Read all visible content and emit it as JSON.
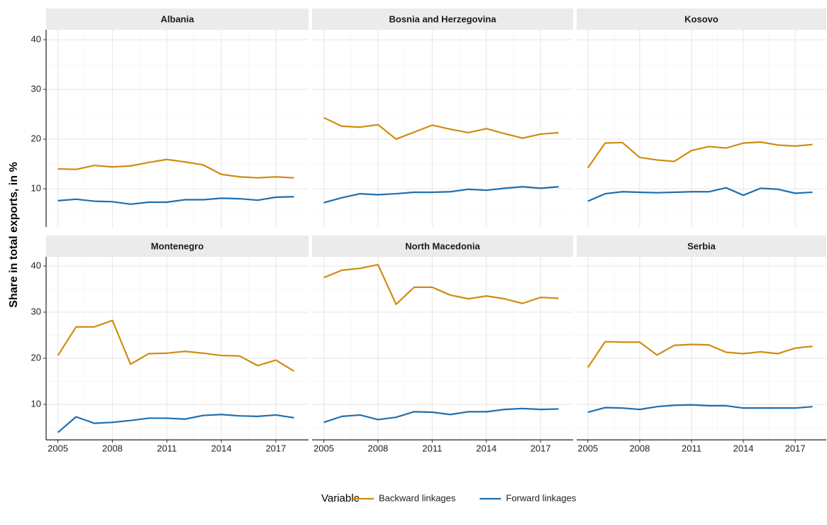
{
  "ylabel": "Share in total exports, in %",
  "legend_title": "Variable",
  "chart_data": [
    {
      "type": "line",
      "title": "Albania",
      "x": [
        2005,
        2006,
        2007,
        2008,
        2009,
        2010,
        2011,
        2012,
        2013,
        2014,
        2015,
        2016,
        2017,
        2018
      ],
      "series": [
        {
          "name": "Backward linkages",
          "color": "#d08c10",
          "values": [
            14.0,
            13.9,
            14.7,
            14.4,
            14.6,
            15.3,
            15.9,
            15.4,
            14.8,
            12.9,
            12.4,
            12.2,
            12.4,
            12.2
          ]
        },
        {
          "name": "Forward linkages",
          "color": "#1f6fb0",
          "values": [
            7.6,
            7.9,
            7.5,
            7.4,
            6.9,
            7.3,
            7.3,
            7.8,
            7.8,
            8.1,
            8.0,
            7.7,
            8.3,
            8.4
          ]
        }
      ],
      "xlim": [
        2004.35,
        2018.8
      ],
      "xticks": [
        2005,
        2008,
        2011,
        2014,
        2017
      ],
      "ylim": [
        2.3,
        42
      ],
      "yticks": [
        10,
        20,
        30,
        40
      ],
      "grid": true
    },
    {
      "type": "line",
      "title": "Bosnia and Herzegovina",
      "x": [
        2005,
        2006,
        2007,
        2008,
        2009,
        2010,
        2011,
        2012,
        2013,
        2014,
        2015,
        2016,
        2017,
        2018
      ],
      "series": [
        {
          "name": "Backward linkages",
          "color": "#d08c10",
          "values": [
            24.3,
            22.6,
            22.4,
            22.9,
            20.0,
            21.4,
            22.8,
            22.0,
            21.3,
            22.1,
            21.1,
            20.2,
            21.0,
            21.3
          ]
        },
        {
          "name": "Forward linkages",
          "color": "#1f6fb0",
          "values": [
            7.2,
            8.2,
            9.0,
            8.8,
            9.0,
            9.3,
            9.3,
            9.4,
            9.9,
            9.7,
            10.1,
            10.4,
            10.1,
            10.4
          ]
        }
      ],
      "xlim": [
        2004.35,
        2018.8
      ],
      "xticks": [
        2005,
        2008,
        2011,
        2014,
        2017
      ],
      "ylim": [
        2.3,
        42
      ],
      "yticks": [
        10,
        20,
        30,
        40
      ],
      "grid": true
    },
    {
      "type": "line",
      "title": "Kosovo",
      "x": [
        2005,
        2006,
        2007,
        2008,
        2009,
        2010,
        2011,
        2012,
        2013,
        2014,
        2015,
        2016,
        2017,
        2018
      ],
      "series": [
        {
          "name": "Backward linkages",
          "color": "#d08c10",
          "values": [
            14.2,
            19.2,
            19.3,
            16.3,
            15.8,
            15.5,
            17.7,
            18.5,
            18.2,
            19.2,
            19.4,
            18.8,
            18.6,
            18.9
          ]
        },
        {
          "name": "Forward linkages",
          "color": "#1f6fb0",
          "values": [
            7.5,
            9.0,
            9.4,
            9.3,
            9.2,
            9.3,
            9.4,
            9.4,
            10.2,
            8.7,
            10.1,
            9.9,
            9.1,
            9.3
          ]
        }
      ],
      "xlim": [
        2004.35,
        2018.8
      ],
      "xticks": [
        2005,
        2008,
        2011,
        2014,
        2017
      ],
      "ylim": [
        2.3,
        42
      ],
      "yticks": [
        10,
        20,
        30,
        40
      ],
      "grid": true
    },
    {
      "type": "line",
      "title": "Montenegro",
      "x": [
        2005,
        2006,
        2007,
        2008,
        2009,
        2010,
        2011,
        2012,
        2013,
        2014,
        2015,
        2016,
        2017,
        2018
      ],
      "series": [
        {
          "name": "Backward linkages",
          "color": "#d08c10",
          "values": [
            20.6,
            26.8,
            26.8,
            28.2,
            18.7,
            21.0,
            21.1,
            21.5,
            21.1,
            20.6,
            20.5,
            18.4,
            19.6,
            17.2
          ]
        },
        {
          "name": "Forward linkages",
          "color": "#1f6fb0",
          "values": [
            3.9,
            7.3,
            5.9,
            6.1,
            6.5,
            7.0,
            7.0,
            6.8,
            7.6,
            7.8,
            7.5,
            7.4,
            7.7,
            7.1
          ]
        }
      ],
      "xlim": [
        2004.35,
        2018.8
      ],
      "xticks": [
        2005,
        2008,
        2011,
        2014,
        2017
      ],
      "ylim": [
        2.3,
        42
      ],
      "yticks": [
        10,
        20,
        30,
        40
      ],
      "grid": true
    },
    {
      "type": "line",
      "title": "North Macedonia",
      "x": [
        2005,
        2006,
        2007,
        2008,
        2009,
        2010,
        2011,
        2012,
        2013,
        2014,
        2015,
        2016,
        2017,
        2018
      ],
      "series": [
        {
          "name": "Backward linkages",
          "color": "#d08c10",
          "values": [
            37.5,
            39.1,
            39.5,
            40.3,
            31.7,
            35.4,
            35.4,
            33.7,
            32.9,
            33.5,
            32.9,
            31.9,
            33.2,
            33.0
          ]
        },
        {
          "name": "Forward linkages",
          "color": "#1f6fb0",
          "values": [
            6.1,
            7.4,
            7.7,
            6.7,
            7.2,
            8.4,
            8.3,
            7.8,
            8.4,
            8.4,
            8.9,
            9.1,
            8.9,
            9.0
          ]
        }
      ],
      "xlim": [
        2004.35,
        2018.8
      ],
      "xticks": [
        2005,
        2008,
        2011,
        2014,
        2017
      ],
      "ylim": [
        2.3,
        42
      ],
      "yticks": [
        10,
        20,
        30,
        40
      ],
      "grid": true
    },
    {
      "type": "line",
      "title": "Serbia",
      "x": [
        2005,
        2006,
        2007,
        2008,
        2009,
        2010,
        2011,
        2012,
        2013,
        2014,
        2015,
        2016,
        2017,
        2018
      ],
      "series": [
        {
          "name": "Backward linkages",
          "color": "#d08c10",
          "values": [
            18.0,
            23.6,
            23.5,
            23.5,
            20.7,
            22.8,
            23.0,
            22.9,
            21.3,
            21.0,
            21.4,
            21.0,
            22.2,
            22.6
          ]
        },
        {
          "name": "Forward linkages",
          "color": "#1f6fb0",
          "values": [
            8.3,
            9.3,
            9.2,
            8.9,
            9.5,
            9.8,
            9.9,
            9.7,
            9.7,
            9.2,
            9.2,
            9.2,
            9.2,
            9.5
          ]
        }
      ],
      "xlim": [
        2004.35,
        2018.8
      ],
      "xticks": [
        2005,
        2008,
        2011,
        2014,
        2017
      ],
      "ylim": [
        2.3,
        42
      ],
      "yticks": [
        10,
        20,
        30,
        40
      ],
      "grid": true
    }
  ]
}
